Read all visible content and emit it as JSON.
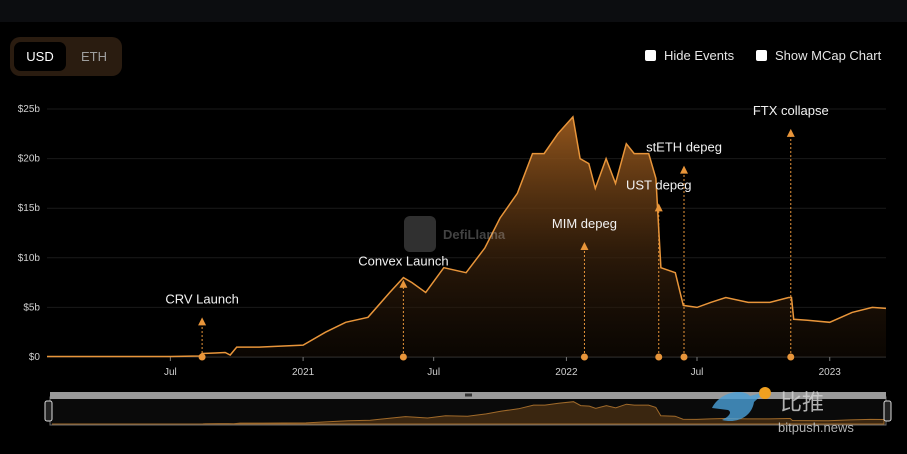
{
  "toggle": {
    "usd": "USD",
    "eth": "ETH",
    "active": "USD"
  },
  "options": {
    "hide_events": "Hide Events",
    "show_mcap": "Show MCap Chart"
  },
  "watermark": {
    "defillama": "DefiLlama",
    "cn": "比推",
    "site": "bitpush.news"
  },
  "colors": {
    "accent": "#e8953a",
    "background": "#000000"
  },
  "chart_data": {
    "type": "area",
    "title": "",
    "xlabel": "",
    "ylabel": "",
    "y_unit": "$",
    "ylim": [
      0,
      25
    ],
    "y_ticks": [
      {
        "v": 0,
        "label": "$0"
      },
      {
        "v": 5,
        "label": "$5b"
      },
      {
        "v": 10,
        "label": "$10b"
      },
      {
        "v": 15,
        "label": "$15b"
      },
      {
        "v": 20,
        "label": "$20b"
      },
      {
        "v": 25,
        "label": "$25b"
      }
    ],
    "xlim": [
      "2020-01-12",
      "2023-03-20"
    ],
    "x_ticks": [
      {
        "date": "2020-07-01",
        "label": "Jul"
      },
      {
        "date": "2021-01-01",
        "label": "2021"
      },
      {
        "date": "2021-07-01",
        "label": "Jul"
      },
      {
        "date": "2022-01-01",
        "label": "2022"
      },
      {
        "date": "2022-07-01",
        "label": "Jul"
      },
      {
        "date": "2023-01-01",
        "label": "2023"
      }
    ],
    "grid": true,
    "points": [
      [
        "2020-01-12",
        0.05
      ],
      [
        "2020-07-01",
        0.05
      ],
      [
        "2020-08-10",
        0.1
      ],
      [
        "2020-08-14",
        0.35
      ],
      [
        "2020-09-01",
        0.4
      ],
      [
        "2020-09-15",
        0.45
      ],
      [
        "2020-09-22",
        0.2
      ],
      [
        "2020-10-01",
        1.0
      ],
      [
        "2020-11-01",
        1.0
      ],
      [
        "2020-12-01",
        1.1
      ],
      [
        "2021-01-01",
        1.2
      ],
      [
        "2021-02-01",
        2.5
      ],
      [
        "2021-03-01",
        3.5
      ],
      [
        "2021-04-01",
        4.0
      ],
      [
        "2021-05-01",
        6.5
      ],
      [
        "2021-05-20",
        8.0
      ],
      [
        "2021-06-01",
        7.5
      ],
      [
        "2021-06-20",
        6.5
      ],
      [
        "2021-07-15",
        9.0
      ],
      [
        "2021-08-15",
        8.5
      ],
      [
        "2021-09-10",
        11.0
      ],
      [
        "2021-10-01",
        14.0
      ],
      [
        "2021-10-25",
        16.5
      ],
      [
        "2021-11-15",
        20.5
      ],
      [
        "2021-12-01",
        20.5
      ],
      [
        "2021-12-20",
        22.5
      ],
      [
        "2022-01-10",
        24.2
      ],
      [
        "2022-01-20",
        20.0
      ],
      [
        "2022-02-01",
        19.5
      ],
      [
        "2022-02-10",
        17.0
      ],
      [
        "2022-02-25",
        20.0
      ],
      [
        "2022-03-10",
        17.5
      ],
      [
        "2022-03-25",
        21.5
      ],
      [
        "2022-04-05",
        20.5
      ],
      [
        "2022-04-25",
        20.5
      ],
      [
        "2022-05-05",
        18.0
      ],
      [
        "2022-05-12",
        9.0
      ],
      [
        "2022-06-01",
        8.5
      ],
      [
        "2022-06-12",
        5.2
      ],
      [
        "2022-07-01",
        5.0
      ],
      [
        "2022-07-20",
        5.5
      ],
      [
        "2022-08-10",
        6.0
      ],
      [
        "2022-09-10",
        5.5
      ],
      [
        "2022-10-10",
        5.5
      ],
      [
        "2022-11-05",
        6.0
      ],
      [
        "2022-11-09",
        6.0
      ],
      [
        "2022-11-12",
        3.8
      ],
      [
        "2022-12-01",
        3.7
      ],
      [
        "2023-01-01",
        3.5
      ],
      [
        "2023-02-01",
        4.5
      ],
      [
        "2023-03-01",
        5.0
      ],
      [
        "2023-03-20",
        4.9
      ]
    ],
    "events": [
      {
        "label": "CRV Launch",
        "date": "2020-08-14",
        "label_y": 5.0
      },
      {
        "label": "Convex Launch",
        "date": "2021-05-20",
        "label_y": 8.8
      },
      {
        "label": "MIM depeg",
        "date": "2022-01-26",
        "label_y": 12.6
      },
      {
        "label": "UST depeg",
        "date": "2022-05-09",
        "label_y": 16.5
      },
      {
        "label": "stETH depeg",
        "date": "2022-06-13",
        "label_y": 20.3
      },
      {
        "label": "FTX collapse",
        "date": "2022-11-08",
        "label_y": 24.0
      }
    ]
  }
}
